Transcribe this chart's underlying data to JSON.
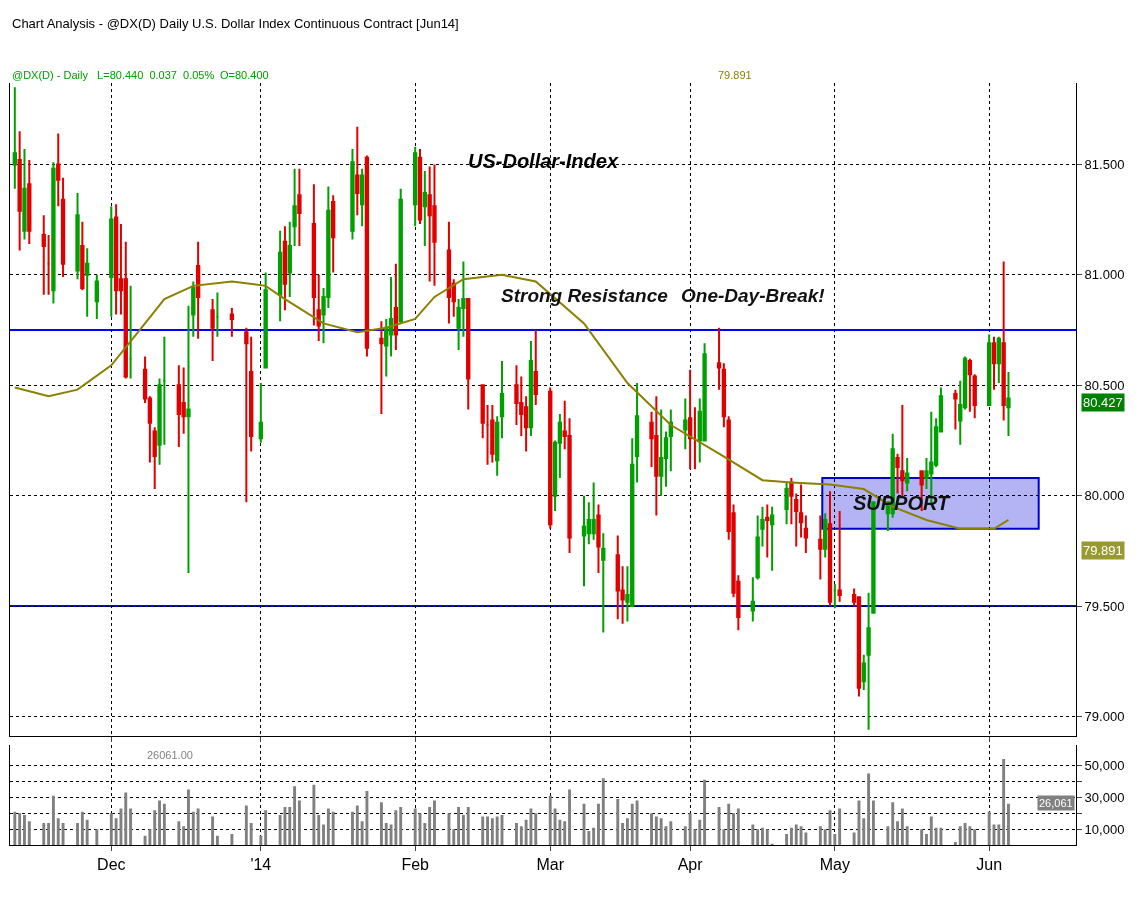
{
  "chart_data": [
    {
      "type": "candlestick",
      "title": "Chart Analysis - @DX(D) Daily U.S. Dollar Index Continuous Contract [Jun14]",
      "subtitle": "@DX(D) - Daily   L=80.440  0.037  0.05%",
      "x": [
        "2013-11-12",
        "2013-11-13",
        "2013-11-14",
        "2013-11-15",
        "2013-11-18",
        "2013-11-19",
        "2013-11-20",
        "2013-11-21",
        "2013-11-22",
        "2013-11-25",
        "2013-11-26",
        "2013-11-27",
        "2013-11-29",
        "2013-12-02",
        "2013-12-03",
        "2013-12-04",
        "2013-12-05",
        "2013-12-06",
        "2013-12-09",
        "2013-12-10",
        "2013-12-11",
        "2013-12-12",
        "2013-12-13",
        "2013-12-16",
        "2013-12-17",
        "2013-12-18",
        "2013-12-19",
        "2013-12-20",
        "2013-12-23",
        "2013-12-24",
        "2013-12-27",
        "2013-12-30",
        "2013-12-31",
        "2014-01-02",
        "2014-01-03",
        "2014-01-06",
        "2014-01-07",
        "2014-01-08",
        "2014-01-09",
        "2014-01-10",
        "2014-01-13",
        "2014-01-14",
        "2014-01-15",
        "2014-01-16",
        "2014-01-17",
        "2014-01-21",
        "2014-01-22",
        "2014-01-23",
        "2014-01-24",
        "2014-01-27",
        "2014-01-28",
        "2014-01-29",
        "2014-01-30",
        "2014-01-31",
        "2014-02-03",
        "2014-02-04",
        "2014-02-05",
        "2014-02-06",
        "2014-02-07",
        "2014-02-10",
        "2014-02-11",
        "2014-02-12",
        "2014-02-13",
        "2014-02-14",
        "2014-02-17",
        "2014-02-18",
        "2014-02-19",
        "2014-02-20",
        "2014-02-21",
        "2014-02-24",
        "2014-02-25",
        "2014-02-26",
        "2014-02-27",
        "2014-02-28",
        "2014-03-03",
        "2014-03-04",
        "2014-03-05",
        "2014-03-06",
        "2014-03-07",
        "2014-03-10",
        "2014-03-11",
        "2014-03-12",
        "2014-03-13",
        "2014-03-14",
        "2014-03-17",
        "2014-03-18",
        "2014-03-19",
        "2014-03-20",
        "2014-03-21",
        "2014-03-24",
        "2014-03-25",
        "2014-03-26",
        "2014-03-27",
        "2014-03-28",
        "2014-03-31",
        "2014-04-01",
        "2014-04-02",
        "2014-04-03",
        "2014-04-04",
        "2014-04-07",
        "2014-04-08",
        "2014-04-09",
        "2014-04-10",
        "2014-04-11",
        "2014-04-14",
        "2014-04-15",
        "2014-04-16",
        "2014-04-17",
        "2014-04-18",
        "2014-04-21",
        "2014-04-22",
        "2014-04-23",
        "2014-04-24",
        "2014-04-25",
        "2014-04-28",
        "2014-04-29",
        "2014-04-30",
        "2014-05-01",
        "2014-05-02",
        "2014-05-05",
        "2014-05-06",
        "2014-05-07",
        "2014-05-08",
        "2014-05-09",
        "2014-05-12",
        "2014-05-13",
        "2014-05-14",
        "2014-05-15",
        "2014-05-16",
        "2014-05-19",
        "2014-05-20",
        "2014-05-21",
        "2014-05-22",
        "2014-05-23",
        "2014-05-26",
        "2014-05-27",
        "2014-05-28",
        "2014-05-29",
        "2014-05-30",
        "2014-06-02",
        "2014-06-03",
        "2014-06-04",
        "2014-06-05",
        "2014-06-06"
      ],
      "ohlc": [
        [
          81.5,
          81.85,
          81.39,
          81.55
        ],
        [
          81.52,
          81.65,
          81.11,
          81.29
        ],
        [
          81.2,
          81.57,
          81.16,
          81.39
        ],
        [
          81.41,
          81.52,
          81.14,
          81.2
        ],
        [
          81.18,
          81.27,
          80.91,
          81.13
        ],
        [
          81.05,
          81.18,
          80.91,
          81.05
        ],
        [
          80.93,
          81.51,
          80.87,
          81.48
        ],
        [
          81.5,
          81.64,
          81.31,
          81.43
        ],
        [
          81.34,
          81.44,
          80.99,
          81.05
        ],
        [
          81.02,
          81.37,
          80.98,
          81.27
        ],
        [
          81.13,
          81.24,
          80.93,
          80.94
        ],
        [
          81.0,
          81.12,
          80.81,
          81.05
        ],
        [
          80.88,
          81.0,
          80.8,
          80.97
        ],
        [
          80.99,
          81.31,
          80.81,
          81.25
        ],
        [
          81.26,
          81.32,
          80.82,
          80.93
        ],
        [
          80.98,
          81.23,
          80.82,
          80.93
        ],
        [
          80.98,
          81.15,
          80.53,
          80.54
        ],
        [
          80.62,
          80.95,
          80.53,
          80.62
        ],
        [
          80.57,
          80.63,
          80.42,
          80.44
        ],
        [
          80.44,
          80.45,
          80.15,
          80.33
        ],
        [
          80.29,
          80.31,
          80.03,
          80.18
        ],
        [
          80.23,
          80.53,
          80.14,
          80.5
        ],
        [
          80.52,
          80.72,
          80.23,
          80.52
        ],
        [
          80.5,
          80.59,
          80.22,
          80.37
        ],
        [
          80.42,
          80.58,
          80.28,
          80.36
        ],
        [
          80.36,
          80.86,
          79.65,
          80.39
        ],
        [
          80.82,
          80.97,
          80.72,
          80.94
        ],
        [
          81.04,
          81.15,
          80.71,
          80.9
        ],
        [
          80.84,
          80.89,
          80.61,
          80.76
        ],
        [
          80.81,
          80.92,
          80.72,
          80.81
        ],
        [
          80.82,
          80.85,
          80.72,
          80.8
        ],
        [
          80.74,
          80.76,
          79.97,
          80.69
        ],
        [
          80.56,
          80.72,
          80.2,
          80.27
        ],
        [
          80.26,
          80.51,
          80.24,
          80.33
        ],
        [
          80.58,
          81.01,
          80.58,
          80.93
        ],
        [
          80.91,
          81.2,
          80.79,
          81.1
        ],
        [
          81.15,
          81.22,
          80.84,
          80.96
        ],
        [
          81.01,
          81.24,
          80.9,
          81.13
        ],
        [
          81.22,
          81.48,
          81.13,
          81.31
        ],
        [
          81.36,
          81.48,
          81.13,
          81.28
        ],
        [
          81.23,
          81.41,
          80.77,
          80.9
        ],
        [
          80.84,
          81.0,
          80.7,
          80.77
        ],
        [
          80.82,
          80.94,
          80.69,
          80.9
        ],
        [
          80.9,
          81.4,
          80.85,
          81.29
        ],
        [
          81.33,
          81.36,
          81.01,
          81.17
        ],
        [
          81.2,
          81.57,
          81.16,
          81.51
        ],
        [
          81.45,
          81.67,
          81.27,
          81.37
        ],
        [
          81.32,
          81.48,
          81.22,
          81.45
        ],
        [
          81.53,
          81.54,
          80.63,
          80.67
        ],
        [
          80.71,
          80.79,
          80.37,
          80.69
        ],
        [
          80.68,
          80.8,
          80.54,
          80.76
        ],
        [
          80.73,
          80.99,
          80.63,
          80.8
        ],
        [
          80.85,
          81.05,
          80.66,
          80.73
        ],
        [
          80.79,
          81.39,
          80.78,
          81.34
        ],
        [
          81.32,
          81.58,
          81.22,
          81.55
        ],
        [
          81.53,
          81.57,
          81.23,
          81.25
        ],
        [
          81.31,
          81.47,
          81.13,
          81.37
        ],
        [
          81.36,
          81.49,
          80.97,
          81.27
        ],
        [
          81.31,
          81.5,
          80.95,
          81.15
        ],
        [
          81.11,
          81.24,
          80.78,
          80.9
        ],
        [
          80.96,
          80.98,
          80.81,
          80.88
        ],
        [
          80.76,
          80.89,
          80.66,
          80.85
        ],
        [
          80.85,
          81.06,
          80.72,
          80.89
        ],
        [
          80.89,
          80.89,
          80.39,
          80.53
        ],
        [
          80.5,
          80.5,
          80.26,
          80.33
        ],
        [
          80.32,
          80.41,
          80.14,
          80.32
        ],
        [
          80.34,
          80.41,
          80.15,
          80.19
        ],
        [
          80.16,
          80.36,
          80.09,
          80.33
        ],
        [
          80.36,
          80.61,
          80.26,
          80.46
        ],
        [
          80.5,
          80.59,
          80.32,
          80.42
        ],
        [
          80.42,
          80.54,
          80.27,
          80.37
        ],
        [
          80.4,
          80.45,
          80.2,
          80.31
        ],
        [
          80.31,
          80.7,
          80.27,
          80.61
        ],
        [
          80.56,
          80.75,
          80.41,
          80.46
        ],
        [
          80.47,
          80.49,
          79.85,
          79.87
        ],
        [
          80.0,
          80.25,
          79.93,
          80.24
        ],
        [
          80.24,
          80.37,
          80.08,
          80.33
        ],
        [
          80.29,
          80.43,
          80.21,
          80.27
        ],
        [
          80.27,
          80.35,
          79.74,
          79.81
        ],
        [
          79.82,
          80.0,
          79.59,
          79.86
        ],
        [
          79.83,
          79.97,
          79.78,
          79.89
        ],
        [
          79.83,
          80.06,
          79.8,
          79.89
        ],
        [
          79.91,
          79.96,
          79.65,
          79.77
        ],
        [
          79.71,
          79.83,
          79.38,
          79.76
        ],
        [
          79.73,
          79.82,
          79.44,
          79.57
        ],
        [
          79.57,
          79.68,
          79.42,
          79.53
        ],
        [
          79.52,
          79.68,
          79.43,
          79.55
        ],
        [
          79.5,
          80.26,
          79.5,
          80.14
        ],
        [
          80.18,
          80.51,
          80.06,
          80.36
        ],
        [
          80.33,
          80.38,
          80.13,
          80.26
        ],
        [
          80.27,
          80.45,
          79.91,
          80.09
        ],
        [
          80.09,
          80.39,
          80.0,
          80.17
        ],
        [
          80.17,
          80.29,
          80.04,
          80.26
        ],
        [
          80.27,
          80.39,
          80.11,
          80.33
        ],
        [
          80.3,
          80.44,
          80.21,
          80.34
        ],
        [
          80.35,
          80.57,
          80.12,
          80.26
        ],
        [
          80.26,
          80.4,
          80.12,
          80.26
        ],
        [
          80.25,
          80.44,
          80.15,
          80.38
        ],
        [
          80.25,
          80.69,
          80.25,
          80.64
        ],
        [
          80.6,
          80.76,
          80.48,
          80.58
        ],
        [
          80.57,
          80.6,
          80.31,
          80.36
        ],
        [
          80.34,
          80.36,
          79.8,
          79.84
        ],
        [
          79.92,
          79.96,
          79.54,
          79.56
        ],
        [
          79.61,
          79.64,
          79.39,
          79.45
        ],
        [
          79.48,
          79.63,
          79.43,
          79.52
        ],
        [
          79.63,
          79.91,
          79.62,
          79.81
        ],
        [
          79.85,
          79.95,
          79.77,
          79.89
        ],
        [
          79.9,
          79.96,
          79.72,
          79.89
        ],
        [
          79.87,
          79.95,
          79.66,
          79.91
        ],
        [
          79.94,
          80.06,
          79.87,
          80.03
        ],
        [
          80.06,
          80.08,
          79.87,
          80.0
        ],
        [
          79.98,
          80.01,
          79.77,
          79.93
        ],
        [
          79.92,
          80.05,
          79.81,
          79.88
        ],
        [
          79.85,
          79.91,
          79.74,
          79.81
        ],
        [
          79.8,
          79.91,
          79.62,
          79.76
        ],
        [
          79.76,
          79.92,
          79.72,
          79.89
        ],
        [
          79.87,
          80.02,
          79.5,
          79.52
        ],
        [
          79.57,
          79.6,
          79.49,
          79.57
        ],
        [
          79.57,
          79.93,
          79.52,
          79.55
        ],
        [
          79.55,
          79.58,
          79.5,
          79.52
        ],
        [
          79.54,
          79.54,
          79.09,
          79.13
        ],
        [
          79.16,
          79.28,
          79.12,
          79.24
        ],
        [
          79.28,
          79.56,
          78.94,
          79.4
        ],
        [
          79.47,
          79.97,
          79.47,
          79.97
        ],
        [
          79.92,
          79.97,
          79.84,
          79.97
        ],
        [
          79.92,
          80.28,
          79.9,
          80.21
        ],
        [
          80.17,
          80.19,
          80.01,
          80.13
        ],
        [
          80.11,
          80.41,
          79.99,
          80.07
        ],
        [
          80.06,
          80.17,
          80.02,
          80.1
        ],
        [
          80.11,
          80.11,
          79.93,
          80.05
        ],
        [
          80.08,
          80.17,
          80.03,
          80.11
        ],
        [
          80.1,
          80.38,
          79.96,
          80.15
        ],
        [
          80.14,
          80.35,
          80.13,
          80.31
        ],
        [
          80.29,
          80.49,
          80.29,
          80.45
        ],
        [
          80.46,
          80.48,
          80.3,
          80.44
        ],
        [
          80.34,
          80.52,
          80.23,
          80.41
        ],
        [
          80.4,
          80.63,
          80.39,
          80.62
        ],
        [
          80.61,
          80.62,
          80.38,
          80.55
        ],
        [
          80.54,
          80.55,
          80.35,
          80.41
        ],
        [
          80.41,
          80.73,
          80.41,
          80.69
        ],
        [
          80.69,
          80.72,
          80.48,
          80.6
        ],
        [
          80.6,
          80.72,
          80.51,
          80.71
        ],
        [
          80.69,
          81.06,
          80.34,
          80.41
        ],
        [
          80.4,
          80.56,
          80.27,
          80.44
        ]
      ],
      "series": [
        {
          "type": "line",
          "color": "#8b8000",
          "x": [
            "2013-11-12",
            "2013-11-19",
            "2013-11-25",
            "2013-12-02",
            "2013-12-09",
            "2013-12-13",
            "2013-12-19",
            "2013-12-27",
            "2014-01-03",
            "2014-01-07",
            "2014-01-15",
            "2014-01-22",
            "2014-01-28",
            "2014-02-03",
            "2014-02-07",
            "2014-02-13",
            "2014-02-21",
            "2014-02-28",
            "2014-03-10",
            "2014-03-19",
            "2014-03-28",
            "2014-04-07",
            "2014-04-16",
            "2014-04-22",
            "2014-04-30",
            "2014-05-07",
            "2014-05-13",
            "2014-05-20",
            "2014-05-27",
            "2014-06-03",
            "2014-06-06"
          ],
          "values": [
            80.49,
            80.45,
            80.48,
            80.59,
            80.78,
            80.89,
            80.95,
            80.97,
            80.95,
            80.89,
            80.78,
            80.74,
            80.76,
            80.8,
            80.9,
            80.98,
            81.0,
            80.97,
            80.78,
            80.51,
            80.32,
            80.19,
            80.07,
            80.06,
            80.05,
            80.03,
            79.95,
            79.89,
            79.85,
            79.85,
            79.89
          ]
        }
      ],
      "xlim": [
        "2013-11-11",
        "2014-06-20"
      ],
      "xticks": [
        {
          "value": "2013-12-02",
          "label": null
        },
        {
          "value": "2014-01-02",
          "label": null
        },
        {
          "value": "2014-02-03",
          "label": null
        },
        {
          "value": "2014-03-03",
          "label": null
        },
        {
          "value": "2014-04-01",
          "label": null
        },
        {
          "value": "2014-05-01",
          "label": null
        },
        {
          "value": "2014-06-02",
          "label": null
        }
      ],
      "ylim": [
        78.91,
        81.87
      ],
      "yticks": [
        {
          "value": 79.0,
          "label": "79.000"
        },
        {
          "value": 79.5,
          "label": "79.500"
        },
        {
          "value": 80.0,
          "label": "80.000"
        },
        {
          "value": 80.5,
          "label": "80.500"
        },
        {
          "value": 81.0,
          "label": "81.000"
        },
        {
          "value": 81.5,
          "label": "81.500"
        }
      ],
      "tick_labels": "y",
      "grid": true,
      "ref_lines": [
        {
          "axis": "y",
          "value": 80.75,
          "color": "#0000ff"
        },
        {
          "axis": "y",
          "value": 79.5,
          "color": "#0000ff"
        }
      ],
      "bands": [
        {
          "axis": "y",
          "from": 79.85,
          "to": 80.08,
          "label": "SUPPORT",
          "color": "#b4b4f5"
        }
      ],
      "annotations": [
        "US-Dollar-Index",
        "O=80.400",
        "79.891",
        {
          "text": "Strong Resistance",
          "x": "2014-03-10",
          "y": 80.75
        },
        {
          "text": "One-Day-Break!",
          "x": "2014-04-14",
          "y": 80.75
        },
        "80.427",
        "79.891"
      ]
    },
    {
      "type": "bar",
      "color": "#808080",
      "x": [
        "2013-11-12",
        "2013-11-13",
        "2013-11-14",
        "2013-11-15",
        "2013-11-18",
        "2013-11-19",
        "2013-11-20",
        "2013-11-21",
        "2013-11-22",
        "2013-11-25",
        "2013-11-26",
        "2013-11-27",
        "2013-11-29",
        "2013-12-02",
        "2013-12-03",
        "2013-12-04",
        "2013-12-05",
        "2013-12-06",
        "2013-12-09",
        "2013-12-10",
        "2013-12-11",
        "2013-12-12",
        "2013-12-13",
        "2013-12-16",
        "2013-12-17",
        "2013-12-18",
        "2013-12-19",
        "2013-12-20",
        "2013-12-23",
        "2013-12-24",
        "2013-12-27",
        "2013-12-30",
        "2013-12-31",
        "2014-01-02",
        "2014-01-03",
        "2014-01-06",
        "2014-01-07",
        "2014-01-08",
        "2014-01-09",
        "2014-01-10",
        "2014-01-13",
        "2014-01-14",
        "2014-01-15",
        "2014-01-16",
        "2014-01-17",
        "2014-01-21",
        "2014-01-22",
        "2014-01-23",
        "2014-01-24",
        "2014-01-27",
        "2014-01-28",
        "2014-01-29",
        "2014-01-30",
        "2014-01-31",
        "2014-02-03",
        "2014-02-04",
        "2014-02-05",
        "2014-02-06",
        "2014-02-07",
        "2014-02-10",
        "2014-02-11",
        "2014-02-12",
        "2014-02-13",
        "2014-02-14",
        "2014-02-17",
        "2014-02-18",
        "2014-02-19",
        "2014-02-20",
        "2014-02-21",
        "2014-02-24",
        "2014-02-25",
        "2014-02-26",
        "2014-02-27",
        "2014-02-28",
        "2014-03-03",
        "2014-03-04",
        "2014-03-05",
        "2014-03-06",
        "2014-03-07",
        "2014-03-10",
        "2014-03-11",
        "2014-03-12",
        "2014-03-13",
        "2014-03-14",
        "2014-03-17",
        "2014-03-18",
        "2014-03-19",
        "2014-03-20",
        "2014-03-21",
        "2014-03-24",
        "2014-03-25",
        "2014-03-26",
        "2014-03-27",
        "2014-03-28",
        "2014-03-31",
        "2014-04-01",
        "2014-04-02",
        "2014-04-03",
        "2014-04-04",
        "2014-04-07",
        "2014-04-08",
        "2014-04-09",
        "2014-04-10",
        "2014-04-11",
        "2014-04-14",
        "2014-04-15",
        "2014-04-16",
        "2014-04-17",
        "2014-04-18",
        "2014-04-21",
        "2014-04-22",
        "2014-04-23",
        "2014-04-24",
        "2014-04-25",
        "2014-04-28",
        "2014-04-29",
        "2014-04-30",
        "2014-05-01",
        "2014-05-02",
        "2014-05-05",
        "2014-05-06",
        "2014-05-07",
        "2014-05-08",
        "2014-05-09",
        "2014-05-12",
        "2014-05-13",
        "2014-05-14",
        "2014-05-15",
        "2014-05-16",
        "2014-05-19",
        "2014-05-20",
        "2014-05-21",
        "2014-05-22",
        "2014-05-23",
        "2014-05-26",
        "2014-05-27",
        "2014-05-28",
        "2014-05-29",
        "2014-05-30",
        "2014-06-02",
        "2014-06-03",
        "2014-06-04",
        "2014-06-05",
        "2014-06-06"
      ],
      "values": [
        21000,
        20000,
        19000,
        15000,
        14000,
        14000,
        31000,
        17000,
        14000,
        14000,
        21000,
        16000,
        10000,
        20000,
        17000,
        23000,
        33000,
        23000,
        6000,
        10000,
        22000,
        28000,
        26000,
        15000,
        12000,
        35000,
        21000,
        23000,
        18000,
        6000,
        7000,
        25000,
        14000,
        6000,
        22000,
        19000,
        24000,
        24000,
        37000,
        28000,
        38000,
        19000,
        13000,
        23000,
        21000,
        21000,
        25000,
        15000,
        34000,
        27000,
        14000,
        13000,
        22000,
        24000,
        23000,
        20000,
        14000,
        24000,
        28000,
        20000,
        10000,
        24000,
        19000,
        24000,
        18000,
        18000,
        17000,
        18000,
        19000,
        14000,
        12000,
        16000,
        23000,
        20000,
        31000,
        23000,
        16000,
        15000,
        35000,
        26000,
        9000,
        11000,
        26000,
        42000,
        29000,
        14000,
        17000,
        26000,
        28000,
        20000,
        18000,
        17000,
        12000,
        15000,
        12000,
        20000,
        10000,
        16000,
        41000,
        24000,
        10000,
        26000,
        20000,
        23000,
        13000,
        10000,
        11000,
        10000,
        1000,
        7000,
        11000,
        13000,
        12000,
        8000,
        12000,
        10000,
        22000,
        7000,
        23000,
        8000,
        28000,
        17000,
        45000,
        28000,
        12000,
        27000,
        15000,
        23000,
        12000,
        10000,
        7000,
        18000,
        11000,
        11000,
        2000,
        12000,
        14000,
        12000,
        10000,
        21000,
        13000,
        13000,
        54000,
        26061
      ],
      "xlim": [
        "2013-11-11",
        "2014-06-20"
      ],
      "xticks": [
        {
          "value": "2013-12-02",
          "label": "Dec"
        },
        {
          "value": "2014-01-02",
          "label": "'14"
        },
        {
          "value": "2014-02-03",
          "label": "Feb"
        },
        {
          "value": "2014-03-03",
          "label": "Mar"
        },
        {
          "value": "2014-04-01",
          "label": "Apr"
        },
        {
          "value": "2014-05-01",
          "label": "May"
        },
        {
          "value": "2014-06-02",
          "label": "Jun"
        }
      ],
      "ylim": [
        0,
        63000
      ],
      "yticks": [
        {
          "value": 10000,
          "label": "10,000"
        },
        {
          "value": 20000,
          "label": null
        },
        {
          "value": 30000,
          "label": "30,000"
        },
        {
          "value": 40000,
          "label": null
        },
        {
          "value": 50000,
          "label": "50,000"
        }
      ],
      "grid": true,
      "annotations": [
        "26061.00",
        "26,061"
      ]
    }
  ]
}
